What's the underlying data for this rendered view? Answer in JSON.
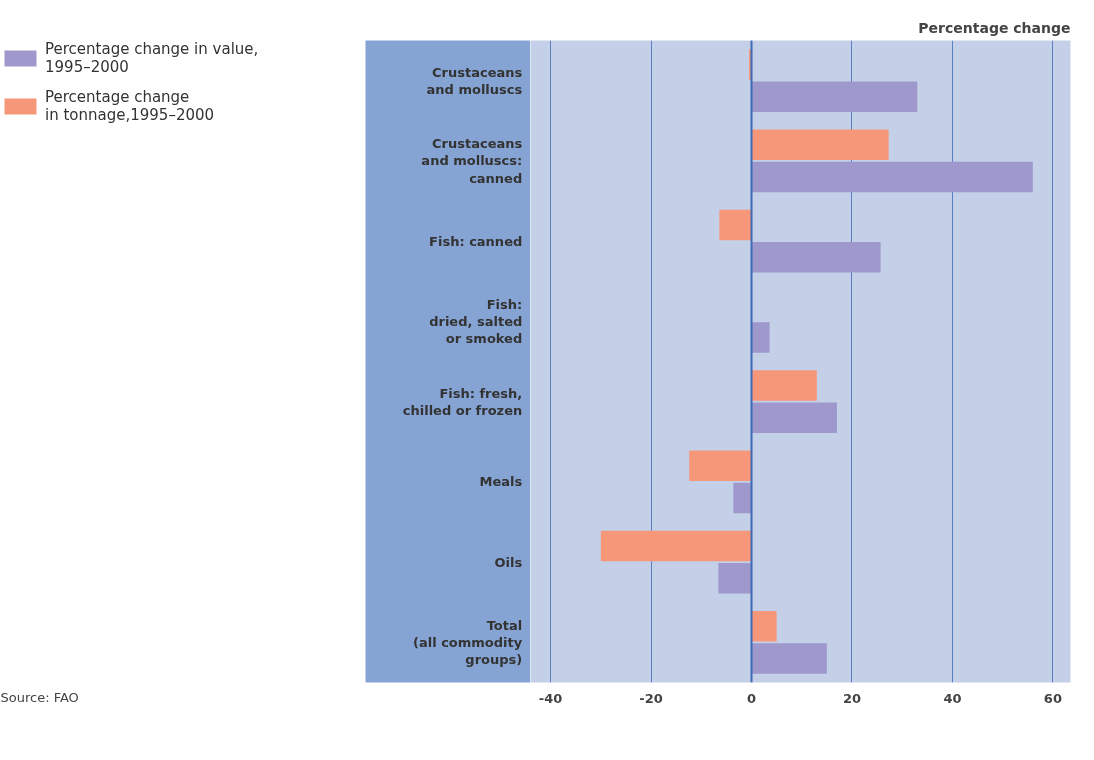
{
  "chart_data": {
    "type": "bar",
    "orientation": "horizontal",
    "xlabel": "Percentage change",
    "categories": [
      "Crustaceans\nand molluscs",
      "Crustaceans\nand molluscs:\ncanned",
      "Fish: canned",
      "Fish:\ndried, salted\nor smoked",
      "Fish: fresh,\nchilled or frozen",
      "Meals",
      "Oils",
      "Total\n(all commodity\ngroups)"
    ],
    "series": [
      {
        "name": "Percentage change in value,\n1995–2000",
        "color": "#9f98cc",
        "values": [
          33,
          56,
          25.7,
          3.6,
          17,
          -3.6,
          -6.6,
          15
        ]
      },
      {
        "name": "Percentage change\nin tonnage,1995–2000",
        "color": "#f7977a",
        "values": [
          -0.5,
          27.3,
          -6.4,
          null,
          13,
          -12.4,
          -30,
          5
        ]
      }
    ],
    "ref_lines": [
      {
        "axis": "x",
        "value": 0,
        "color": "#3d6bb5"
      }
    ],
    "xlim": [
      -44,
      63.5
    ],
    "xticks": [
      -40,
      -20,
      0,
      20,
      40,
      60
    ],
    "grid": "x",
    "legend": "left",
    "annotations": [
      "Source: FAO"
    ]
  }
}
